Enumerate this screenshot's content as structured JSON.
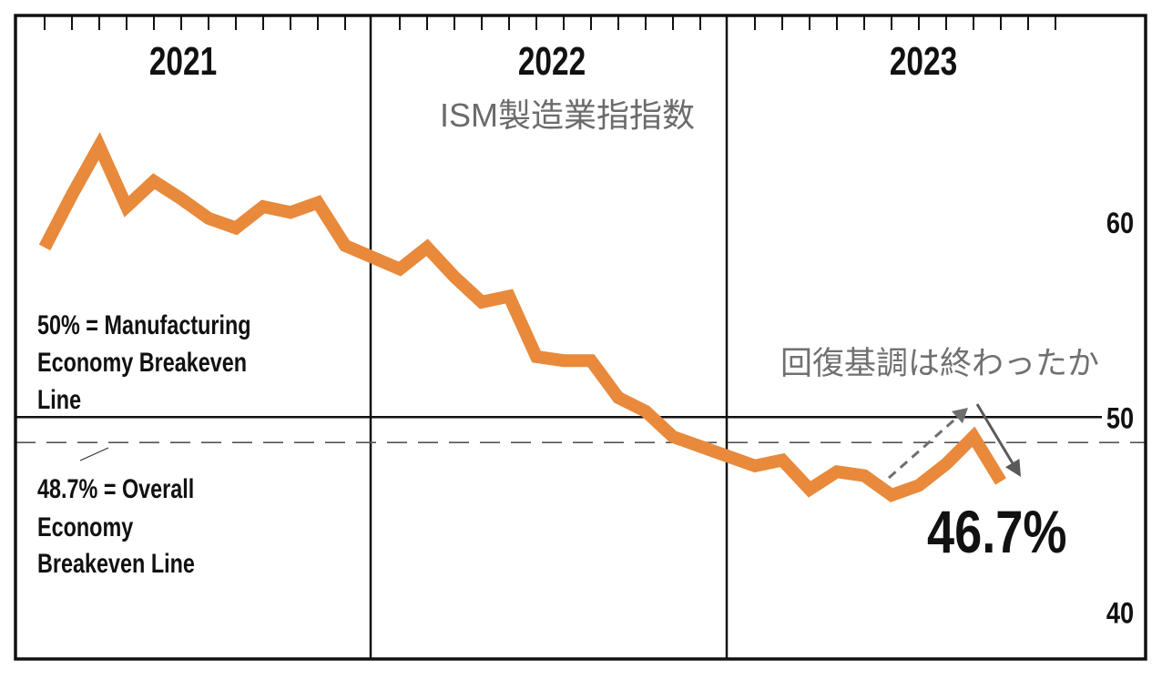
{
  "chart_data": {
    "type": "line",
    "title": "ISM製造業指指数",
    "x_group_labels": [
      "2021",
      "2022",
      "2023"
    ],
    "y_ticks": [
      60,
      50,
      40
    ],
    "ylim": [
      37.6,
      70.6
    ],
    "grid": false,
    "legend": "none",
    "x": [
      "2021-01",
      "2021-02",
      "2021-03",
      "2021-04",
      "2021-05",
      "2021-06",
      "2021-07",
      "2021-08",
      "2021-09",
      "2021-10",
      "2021-11",
      "2021-12",
      "2022-01",
      "2022-02",
      "2022-03",
      "2022-04",
      "2022-05",
      "2022-06",
      "2022-07",
      "2022-08",
      "2022-09",
      "2022-10",
      "2022-11",
      "2022-12",
      "2023-01",
      "2023-02",
      "2023-03",
      "2023-04",
      "2023-05",
      "2023-06",
      "2023-07",
      "2023-08",
      "2023-09",
      "2023-10"
    ],
    "series": [
      {
        "color": "#E8893B",
        "values": [
          58.7,
          61.4,
          63.9,
          60.8,
          62.1,
          61.2,
          60.2,
          59.7,
          60.8,
          60.5,
          61.0,
          58.8,
          57.6,
          58.7,
          57.2,
          55.9,
          56.2,
          53.1,
          52.9,
          52.9,
          51.0,
          50.3,
          49.0,
          48.5,
          47.5,
          47.8,
          46.3,
          47.2,
          47.0,
          46.0,
          46.5,
          47.6,
          49.0,
          46.7
        ]
      }
    ],
    "reference_lines": [
      {
        "value": 50,
        "style": "solid",
        "label_lines": [
          "50% = Manufacturing",
          "Economy Breakeven",
          "Line"
        ]
      },
      {
        "value": 48.7,
        "style": "dashed",
        "label_lines": [
          "48.7% = Overall",
          "Economy",
          "Breakeven Line"
        ]
      }
    ],
    "annotations": {
      "question": "回復基調は終わったか",
      "latest_value_label": "46.7%",
      "latest_value_color": "#E8893B"
    }
  }
}
